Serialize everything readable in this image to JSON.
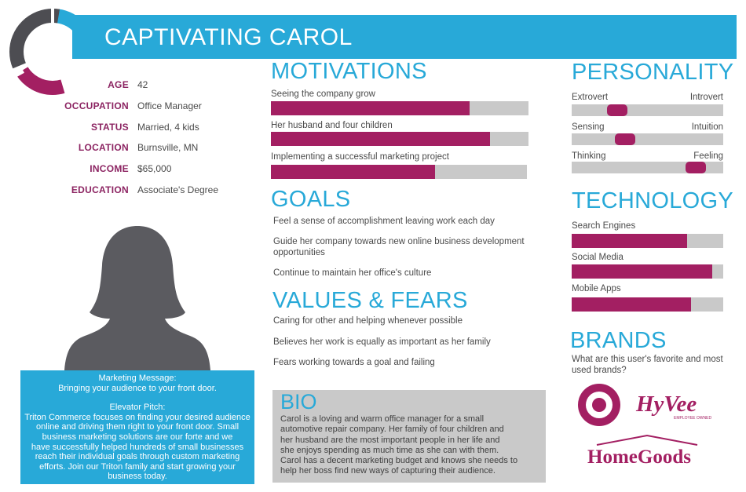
{
  "header": {
    "title": "CAPTIVATING CAROL"
  },
  "profile": {
    "fields": [
      {
        "label": "AGE",
        "value": "42"
      },
      {
        "label": "OCCUPATION",
        "value": "Office Manager"
      },
      {
        "label": "STATUS",
        "value": "Married, 4 kids"
      },
      {
        "label": "LOCATION",
        "value": "Burnsville, MN"
      },
      {
        "label": "INCOME",
        "value": "$65,000"
      },
      {
        "label": "EDUCATION",
        "value": "Associate's Degree"
      }
    ]
  },
  "message": {
    "lines": [
      "Marketing Message:",
      "Bringing your audience to your front door.",
      "",
      "Elevator Pitch:",
      "Triton Commerce focuses on finding your desired audience",
      "online and driving them right to your front door. Small",
      "business marketing solutions are our forte and we",
      "have successfully helped hundreds of small businesses",
      "reach their individual goals through custom marketing",
      "efforts. Join our Triton family and start growing your",
      "business today."
    ]
  },
  "motivations": {
    "title": "MOTIVATIONS",
    "items": [
      {
        "label": "Seeing the company grow",
        "level": 0.77
      },
      {
        "label": "Her husband and four children",
        "level": 0.85
      },
      {
        "label": "Implementing a successful marketing project",
        "level": 0.64
      }
    ]
  },
  "goals": {
    "title": "GOALS",
    "items": [
      "Feel a sense of accomplishment leaving work each day",
      "Guide her company towards new online business development opportunities",
      "Continue to maintain her office's culture"
    ]
  },
  "values_fears": {
    "title": "VALUES & FEARS",
    "items": [
      "Caring for other and helping whenever possible",
      "Believes her work is equally as important as her family",
      "Fears working towards a goal and failing"
    ]
  },
  "bio": {
    "title": "BIO",
    "lines": [
      "Carol is a loving and warm office manager for a small",
      "automotive repair company. Her family of four children and",
      "her husband are the most important people in her life and",
      "she enjoys spending as much time as she can with them.",
      "Carol has a decent marketing budget and knows she needs to",
      "help her boss find new ways of capturing their audience."
    ]
  },
  "personality": {
    "title": "PERSONALITY",
    "sliders": [
      {
        "left": "Extrovert",
        "right": "Introvert",
        "position": 0.3
      },
      {
        "left": "Sensing",
        "right": "Intuition",
        "position": 0.35
      },
      {
        "left": "Thinking",
        "right": "Feeling",
        "position": 0.82
      }
    ]
  },
  "technology": {
    "title": "TECHNOLOGY",
    "items": [
      {
        "label": "Search Engines",
        "level": 0.76
      },
      {
        "label": "Social Media",
        "level": 0.93
      },
      {
        "label": "Mobile Apps",
        "level": 0.79
      }
    ]
  },
  "brands": {
    "title": "BRANDS",
    "question": "What are this user's favorite and most used brands?",
    "logos": [
      {
        "name": "Target",
        "icon": "target-logo-icon",
        "color": "#a31f62"
      },
      {
        "name": "HyVee",
        "text": "HyVee",
        "subtext": "EMPLOYEE OWNED",
        "color": "#a31f62"
      },
      {
        "name": "HomeGoods",
        "text": "HomeGoods",
        "color": "#a31f62"
      }
    ]
  },
  "colors": {
    "accent": "#28a9d8",
    "brand": "#a31f62",
    "track": "#c9c9c9",
    "label": "#8c2462"
  }
}
